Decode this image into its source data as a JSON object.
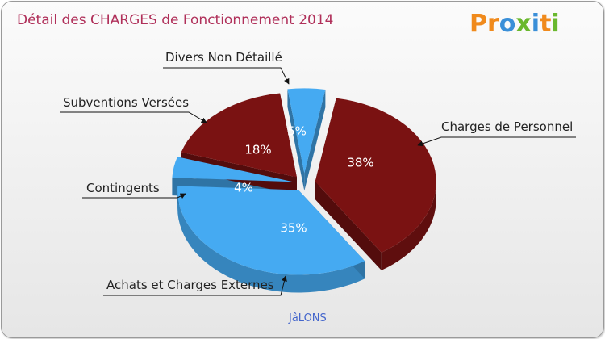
{
  "title": "Détail des CHARGES de Fonctionnement 2014",
  "logo": {
    "text": "Proxiti",
    "letters": [
      "P",
      "r",
      "o",
      "x",
      "i",
      "t",
      "i"
    ]
  },
  "city": "JâLONS",
  "chart_data": {
    "type": "pie",
    "title": "Détail des CHARGES de Fonctionnement 2014",
    "style": "3d-exploded",
    "slices": [
      {
        "label": "Charges de Personnel",
        "value": 38,
        "pct_label": "38%",
        "color": "#7a1212"
      },
      {
        "label": "Achats et Charges Externes",
        "value": 35,
        "pct_label": "35%",
        "color": "#45aaf2"
      },
      {
        "label": "Contingents",
        "value": 4,
        "pct_label": "4%",
        "color": "#45aaf2"
      },
      {
        "label": "Subventions Versées",
        "value": 18,
        "pct_label": "18%",
        "color": "#7a1212"
      },
      {
        "label": "Divers Non Détaillé",
        "value": 5,
        "pct_label": "5%",
        "color": "#45aaf2"
      }
    ]
  }
}
